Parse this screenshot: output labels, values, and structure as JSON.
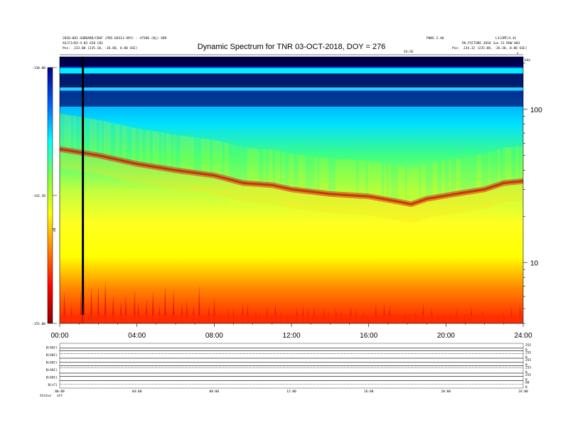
{
  "header": {
    "left_line1": "2020-081 GODDARD/CDHF (PDS B4S13-ARY) - 47500 (Nj) XDR",
    "left_line2": "AS/F2/B3-4 B3 G58 C02",
    "left_line3_label": "Pos:",
    "left_line3_value": "233.00 (235.10, -26.68, 0.80 GSE)",
    "right_top_a": "PWOG 2.40",
    "right_top_b": "L3(GMT+5.0)",
    "right_line2": "RH_PICTURE 2018 Jun 21 ROW 003",
    "right_line3_label": "Pos:",
    "right_line3_value": "234.32 (235.08, -26.38, 0.80 GSE)",
    "gse_label": "GS:GE",
    "khz_label": "kHz"
  },
  "chart_data": {
    "type": "heatmap",
    "title": "Dynamic Spectrum for TNR 03-OCT-2018, DOY = 276",
    "x": {
      "ticks": [
        "00:00",
        "04:00",
        "08:00",
        "12:00",
        "16:00",
        "20:00",
        "24:00"
      ],
      "range_hours": [
        0,
        24
      ]
    },
    "y": {
      "scale": "log",
      "ticks": [
        "10",
        "100"
      ],
      "range_khz": [
        4,
        220
      ]
    },
    "colorbar": {
      "ticks": [
        "-130.00",
        "-142.50",
        "-155.00"
      ],
      "range": [
        -155,
        -130
      ],
      "label": "dB"
    },
    "colormap": [
      "#8b0000",
      "#ff0000",
      "#ff8000",
      "#ffff00",
      "#80ff40",
      "#00ffff",
      "#0060ff",
      "#00008b"
    ],
    "features": {
      "peak_band": [
        [
          0.0,
          55
        ],
        [
          2.0,
          50
        ],
        [
          4.0,
          44
        ],
        [
          6.0,
          40
        ],
        [
          8.0,
          37
        ],
        [
          9.5,
          33
        ],
        [
          11.0,
          32
        ],
        [
          12.0,
          30
        ],
        [
          14.0,
          28
        ],
        [
          16.0,
          27
        ],
        [
          17.5,
          25
        ],
        [
          18.2,
          24
        ],
        [
          19.0,
          26
        ],
        [
          20.5,
          28
        ],
        [
          22.0,
          30
        ],
        [
          23.0,
          33
        ],
        [
          24.0,
          34
        ]
      ],
      "dark_stripe_hour": 1.2
    },
    "panels": [
      {
        "label": "B(ADC)",
        "right_ticks": [
          "255",
          "0"
        ],
        "level": 0.35
      },
      {
        "label": "B(ADC)",
        "right_ticks": [
          "255",
          "0"
        ],
        "level": 0.6
      },
      {
        "label": "B(ADC)",
        "right_ticks": [
          "255",
          "0"
        ],
        "level": 0.45
      },
      {
        "label": "B(ADC)",
        "right_ticks": [
          "255",
          "0"
        ],
        "level": 0.7
      },
      {
        "label": "B(ADC)",
        "right_ticks": [
          "255",
          "0"
        ],
        "level": 0.55
      },
      {
        "label": "B(nT)",
        "right_ticks": [
          "60",
          "0"
        ],
        "level": 0.5
      }
    ],
    "bottom_ticks": [
      "00:00",
      "04:00",
      "08:00",
      "12:00",
      "16:00",
      "20:00",
      "24:00"
    ],
    "bottom_label": "Status",
    "bottom_sublabel": "att"
  }
}
